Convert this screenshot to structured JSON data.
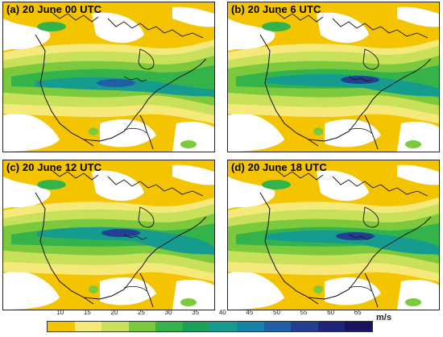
{
  "panels": [
    {
      "id": "a",
      "title": "(a) 20 June 00 UTC"
    },
    {
      "id": "b",
      "title": "(b) 20 June 6 UTC"
    },
    {
      "id": "c",
      "title": "(c) 20 June 12 UTC"
    },
    {
      "id": "d",
      "title": "(d) 20 June 18 UTC"
    }
  ],
  "colorbar": {
    "labels": [
      "10",
      "15",
      "20",
      "25",
      "30",
      "35",
      "40",
      "45",
      "50",
      "55",
      "60",
      "65"
    ],
    "unit": "m/s",
    "colors": [
      "#f5c400",
      "#f5e97a",
      "#c8e05a",
      "#7dc93e",
      "#34b34a",
      "#1ca05a",
      "#169c8e",
      "#1583a8",
      "#1f5fa6",
      "#233f92",
      "#1f237a",
      "#1a1460"
    ]
  },
  "map_colors": {
    "white": "#ffffff",
    "yellow": "#f5c400",
    "light_yellow": "#f5e97a",
    "lime": "#c8e05a",
    "green": "#7dc93e",
    "mid_green": "#34b34a",
    "teal": "#169c8e",
    "blue": "#1f5fa6",
    "navy": "#233f92",
    "coast": "#111111"
  }
}
